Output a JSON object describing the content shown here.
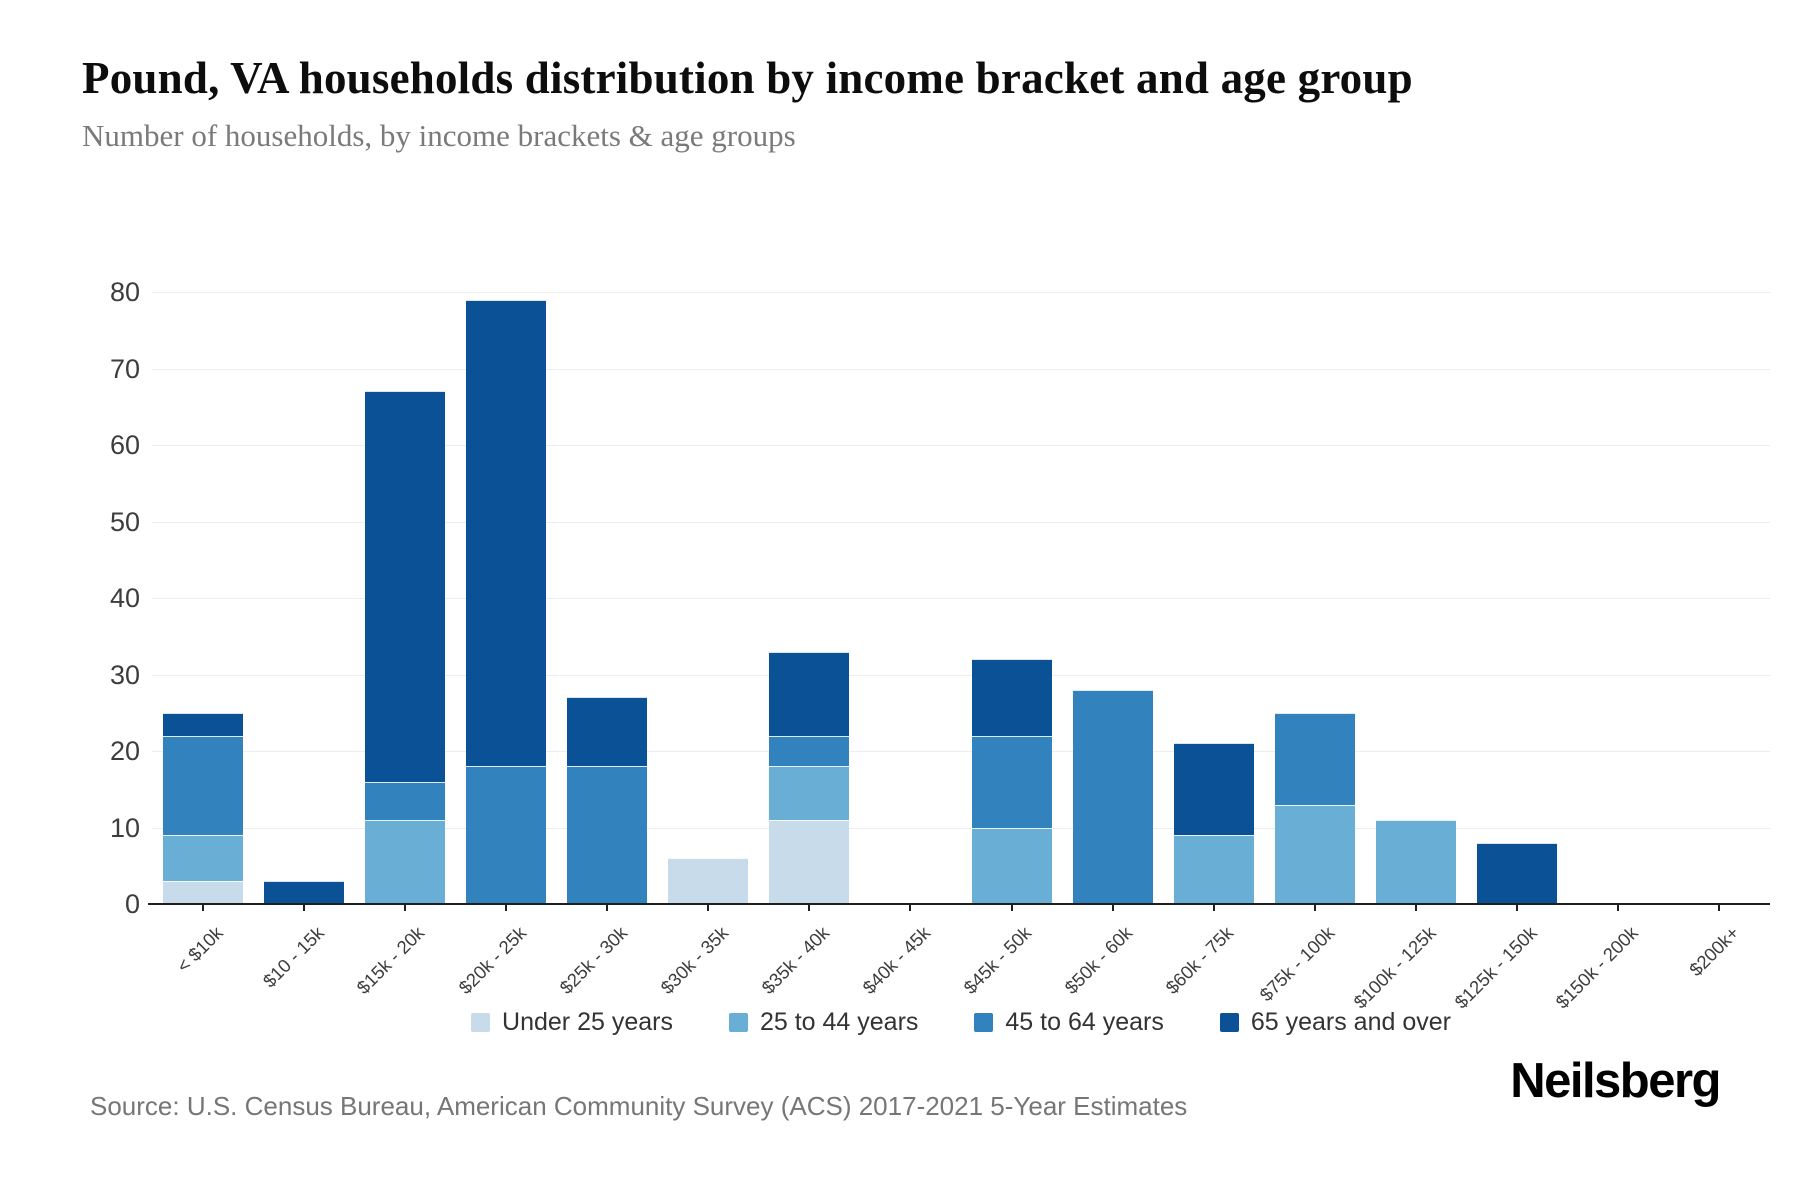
{
  "header": {
    "title": "Pound, VA households distribution by income bracket and age group",
    "subtitle": "Number of households, by income brackets & age groups"
  },
  "footer": {
    "source": "Source: U.S. Census Bureau, American Community Survey (ACS) 2017-2021 5-Year Estimates",
    "logo": "Neilsberg"
  },
  "chart_data": {
    "type": "bar",
    "stacked": true,
    "title": "Pound, VA households distribution by income bracket and age group",
    "subtitle": "Number of households, by income brackets & age groups",
    "categories": [
      "< $10k",
      "$10 - 15k",
      "$15k - 20k",
      "$20k - 25k",
      "$25k - 30k",
      "$30k - 35k",
      "$35k - 40k",
      "$40k - 45k",
      "$45k - 50k",
      "$50k - 60k",
      "$60k - 75k",
      "$75k - 100k",
      "$100k - 125k",
      "$125k - 150k",
      "$150k - 200k",
      "$200k+"
    ],
    "series": [
      {
        "name": "Under 25 years",
        "color": "#c8dbea",
        "values": [
          3,
          0,
          0,
          0,
          0,
          6,
          11,
          0,
          0,
          0,
          0,
          0,
          0,
          0,
          0,
          0
        ]
      },
      {
        "name": "25 to 44 years",
        "color": "#69aed5",
        "values": [
          6,
          0,
          11,
          0,
          0,
          0,
          7,
          0,
          10,
          0,
          9,
          13,
          11,
          0,
          0,
          0
        ]
      },
      {
        "name": "45 to 64 years",
        "color": "#3182bd",
        "values": [
          13,
          0,
          5,
          18,
          18,
          0,
          4,
          0,
          12,
          28,
          0,
          12,
          0,
          0,
          0,
          0
        ]
      },
      {
        "name": "65 years and over",
        "color": "#0b5196",
        "values": [
          3,
          3,
          51,
          61,
          9,
          0,
          11,
          0,
          10,
          0,
          12,
          0,
          0,
          8,
          0,
          0
        ]
      }
    ],
    "totals": [
      25,
      3,
      67,
      79,
      27,
      6,
      33,
      0,
      32,
      28,
      21,
      25,
      11,
      8,
      0,
      0
    ],
    "ylim": [
      0,
      80
    ],
    "yticks": [
      0,
      10,
      20,
      30,
      40,
      50,
      60,
      70,
      80
    ],
    "grid": "horizontal",
    "grid_color": "#ededed",
    "axis_color": "#1f1f1f",
    "legend_position": "bottom"
  }
}
